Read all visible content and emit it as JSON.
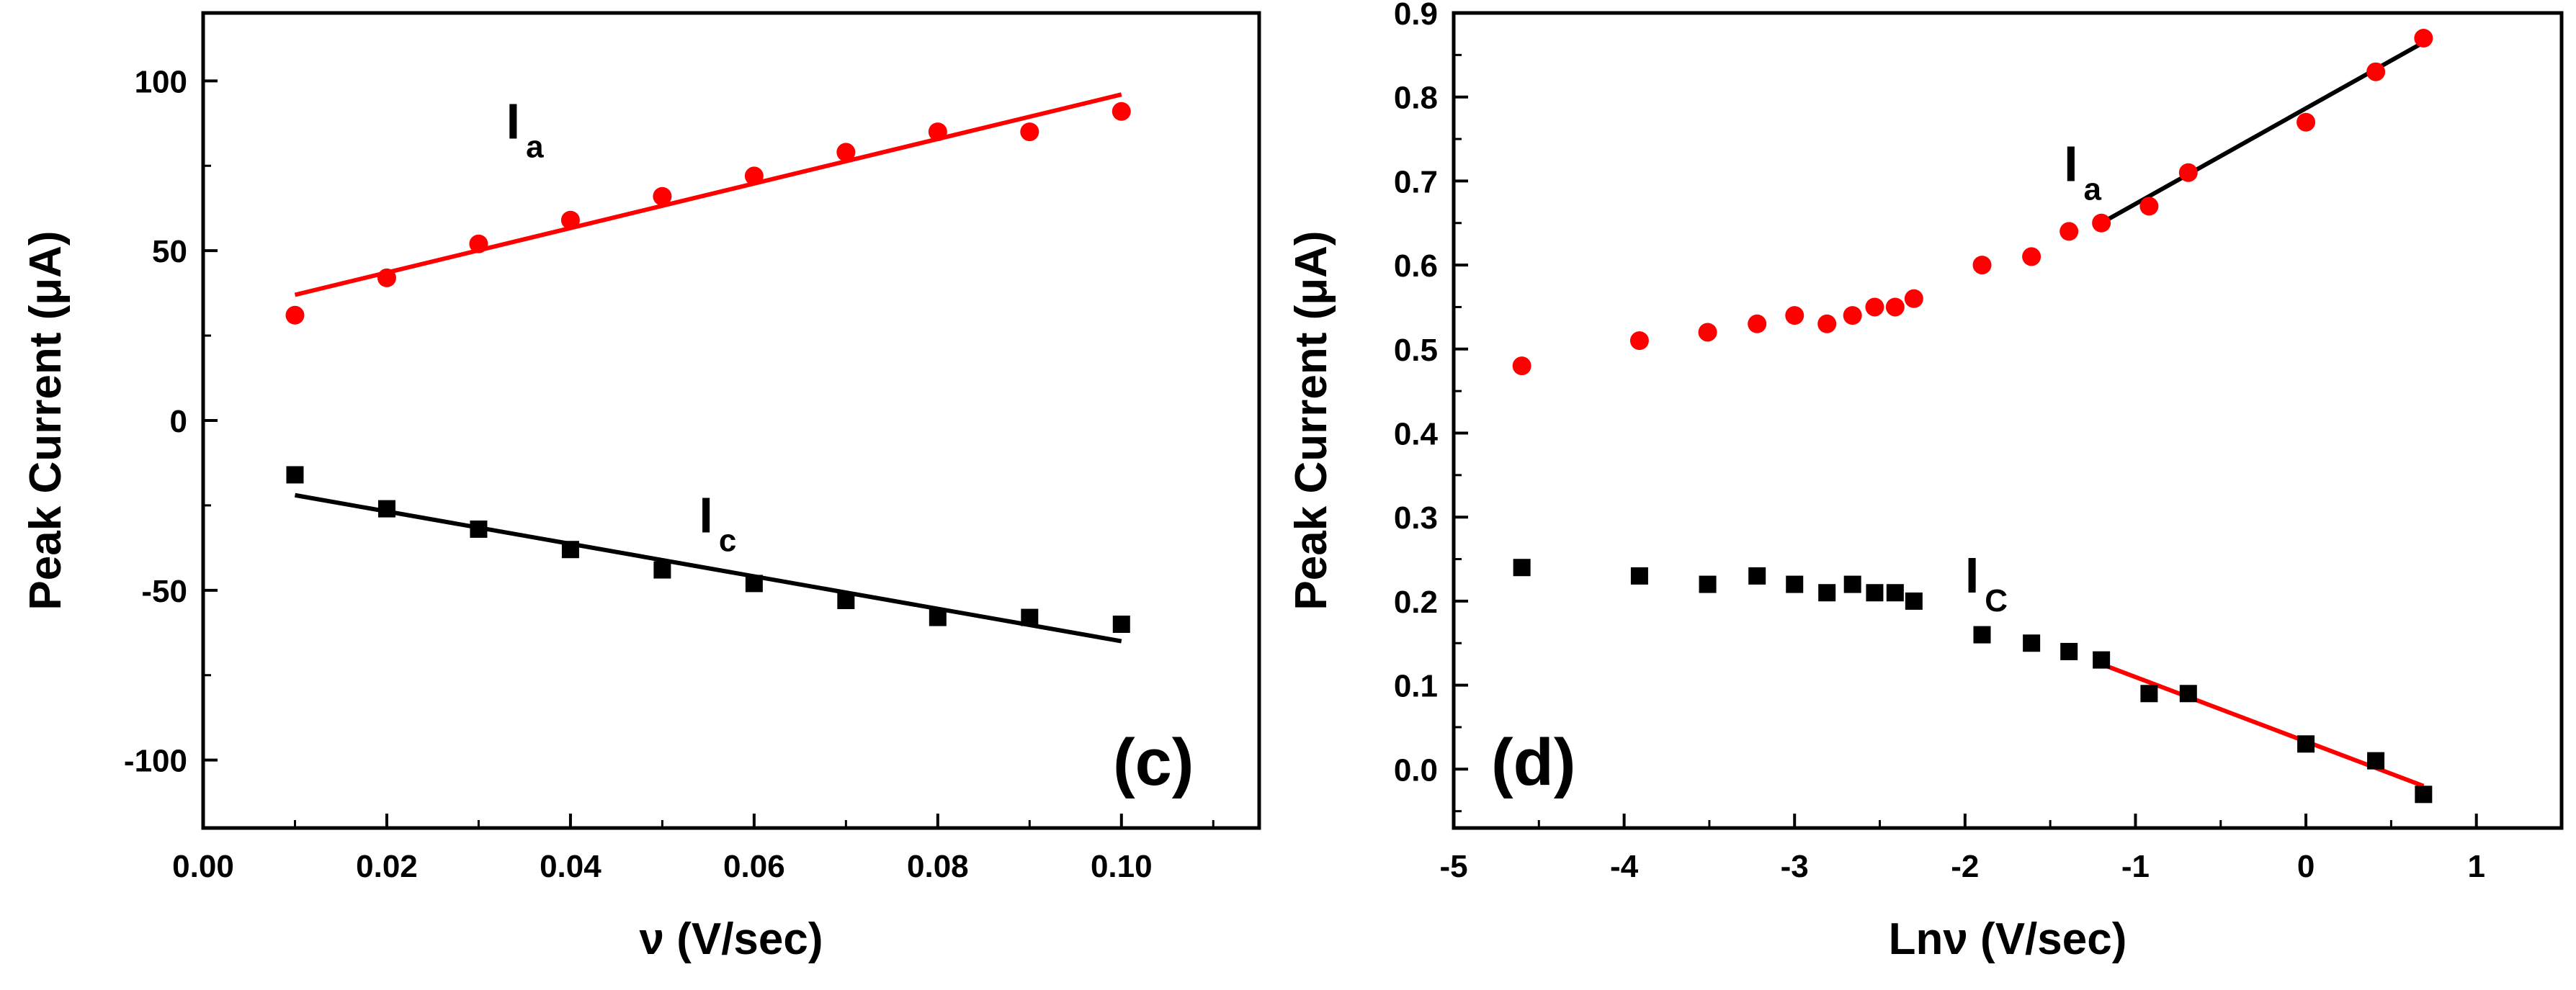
{
  "chart_data": [
    {
      "type": "scatter",
      "panel_label": "(c)",
      "xlabel": "ν (V/sec)",
      "ylabel": "Peak Current (μA)",
      "xlim": [
        0.0,
        0.115
      ],
      "ylim": [
        -120,
        120
      ],
      "xticks": [
        0.0,
        0.02,
        0.04,
        0.06,
        0.08,
        0.1
      ],
      "xtick_labels": [
        "0.00",
        "0.02",
        "0.04",
        "0.06",
        "0.08",
        "0.10"
      ],
      "yticks": [
        100,
        50,
        0,
        -50,
        -100
      ],
      "ytick_labels": [
        "100",
        "50",
        "0",
        "-50",
        "-100"
      ],
      "series": [
        {
          "name": "Ia",
          "label_main": "I",
          "label_sub": "a",
          "label_pos": [
            0.033,
            83
          ],
          "marker": "circle",
          "color": "#ff0000",
          "x": [
            0.01,
            0.02,
            0.03,
            0.04,
            0.05,
            0.06,
            0.07,
            0.08,
            0.09,
            0.1
          ],
          "y": [
            31,
            42,
            52,
            59,
            66,
            72,
            79,
            85,
            85,
            91
          ],
          "fit": {
            "x": [
              0.01,
              0.1
            ],
            "y": [
              37,
              96
            ],
            "color": "#ff0000"
          }
        },
        {
          "name": "Ic",
          "label_main": "I",
          "label_sub": "c",
          "label_pos": [
            0.054,
            -33
          ],
          "marker": "square",
          "color": "#000000",
          "x": [
            0.01,
            0.02,
            0.03,
            0.04,
            0.05,
            0.06,
            0.07,
            0.08,
            0.09,
            0.1
          ],
          "y": [
            -16,
            -26,
            -32,
            -38,
            -44,
            -48,
            -53,
            -58,
            -58,
            -60
          ],
          "fit": {
            "x": [
              0.01,
              0.1
            ],
            "y": [
              -22,
              -65
            ],
            "color": "#000000"
          }
        }
      ]
    },
    {
      "type": "scatter",
      "panel_label": "(d)",
      "xlabel": "Lnν (V/sec)",
      "ylabel": "Peak Current (μA)",
      "xlim": [
        -5,
        1.5
      ],
      "ylim": [
        -0.07,
        0.9
      ],
      "xticks": [
        -5,
        -4,
        -3,
        -2,
        -1,
        0,
        1
      ],
      "xtick_labels": [
        "-5",
        "-4",
        "-3",
        "-2",
        "-1",
        "0",
        "1"
      ],
      "yticks": [
        0.0,
        0.1,
        0.2,
        0.3,
        0.4,
        0.5,
        0.6,
        0.7,
        0.8,
        0.9
      ],
      "ytick_labels": [
        "0.0",
        "0.1",
        "0.2",
        "0.3",
        "0.4",
        "0.5",
        "0.6",
        "0.7",
        "0.8",
        "0.9"
      ],
      "series": [
        {
          "name": "Ia",
          "label_main": "I",
          "label_sub": "a",
          "label_pos": [
            -1.42,
            0.7
          ],
          "marker": "circle",
          "color": "#ff0000",
          "x": [
            -4.6,
            -3.91,
            -3.51,
            -3.22,
            -3.0,
            -2.81,
            -2.66,
            -2.53,
            -2.41,
            -2.3,
            -1.9,
            -1.61,
            -1.39,
            -1.2,
            -0.92,
            -0.69,
            0.0,
            0.41,
            0.69
          ],
          "y": [
            0.48,
            0.51,
            0.52,
            0.53,
            0.54,
            0.53,
            0.54,
            0.55,
            0.55,
            0.56,
            0.6,
            0.61,
            0.64,
            0.65,
            0.67,
            0.71,
            0.77,
            0.83,
            0.87
          ],
          "fit": {
            "x": [
              -1.2,
              0.69
            ],
            "y": [
              0.65,
              0.865
            ],
            "color": "#000000"
          }
        },
        {
          "name": "Ic",
          "label_main": "I",
          "label_sub": "C",
          "label_pos": [
            -2.0,
            0.21
          ],
          "marker": "square",
          "color": "#000000",
          "x": [
            -4.6,
            -3.91,
            -3.51,
            -3.22,
            -3.0,
            -2.81,
            -2.66,
            -2.53,
            -2.41,
            -2.3,
            -1.9,
            -1.61,
            -1.39,
            -1.2,
            -0.92,
            -0.69,
            0.0,
            0.41,
            0.69
          ],
          "y": [
            0.24,
            0.23,
            0.22,
            0.23,
            0.22,
            0.21,
            0.22,
            0.21,
            0.21,
            0.2,
            0.16,
            0.15,
            0.14,
            0.13,
            0.09,
            0.09,
            0.03,
            0.01,
            -0.03
          ],
          "fit": {
            "x": [
              -1.2,
              0.69
            ],
            "y": [
              0.125,
              -0.02
            ],
            "color": "#ff0000"
          }
        }
      ]
    }
  ]
}
